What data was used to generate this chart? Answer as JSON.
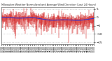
{
  "title": "Milwaukee Weather Normalized and Average Wind Direction (Last 24 Hours)",
  "background_color": "#ffffff",
  "grid_color": "#aaaaaa",
  "bar_color": "#cc0000",
  "line_color": "#3333cc",
  "n_points": 288,
  "y_min": -16,
  "y_max": 6,
  "yticks": [
    5,
    0,
    -5,
    -10,
    -15
  ],
  "ytick_labels": [
    "5",
    "0",
    "-5",
    "-10",
    "-15"
  ],
  "seed": 42
}
